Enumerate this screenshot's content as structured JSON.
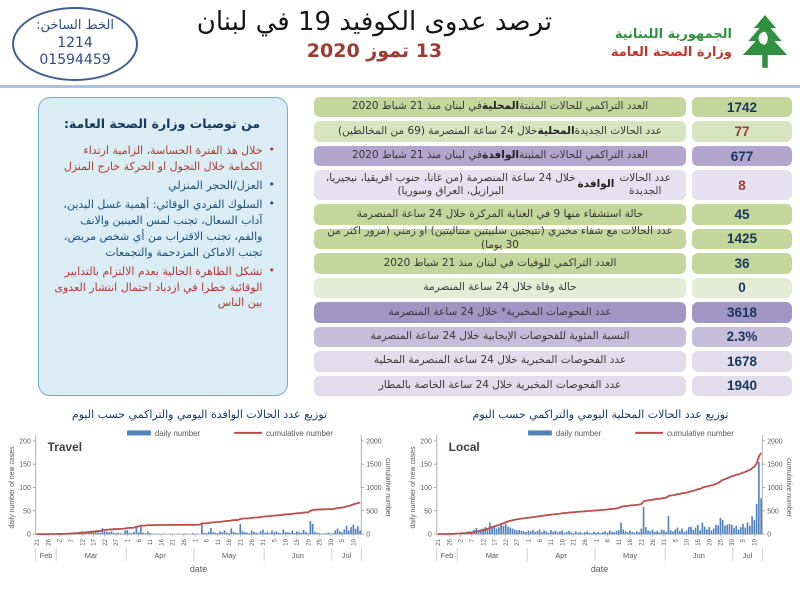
{
  "header": {
    "hotline": {
      "label": "الخط الساخن:",
      "number_short": "1214",
      "number_long": "01594459"
    },
    "title": "ترصد عدوى الكوفيد 19 في لبنان",
    "date": "13 تموز 2020",
    "ministry": {
      "line1": "الجمهورية اللبنانية",
      "line2": "وزارة الصحة العامة"
    },
    "logo_color": "#2f9140"
  },
  "recommendations": {
    "title": "من توصيات وزارة الصحة العامة:",
    "items": [
      {
        "text": "خلال هذ الفترة الحساسة، الزامية ارتداء الكمامة خلال التجول او الحركة خارج المنزل",
        "color": "red"
      },
      {
        "text": "العزل/الحجر المنزلي",
        "color": "blue"
      },
      {
        "text": "السلوك الفردي الوقائي: أهمية غسل اليدين، آداب السعال، تجنب لمس العينين والانف والفم، تجنب الاقتراب من أي شخص مريض، تجنب الاماكن المزدحمة والتجمعات",
        "color": "blue"
      },
      {
        "text": "تشكل الظاهرة الحالية بعدم الالتزام بالتدابير الوقائية خطرا في ازدياد احتمال انتشار العدوى بين الناس",
        "color": "red"
      }
    ]
  },
  "stats": {
    "rows": [
      {
        "value": "1742",
        "label": "العدد التراكمي للحالات المثبتة المحلية في لبنان منذ 21 شباط 2020",
        "bold": "المحلية",
        "bg": "#c3d69b",
        "value_color": "#17365d",
        "tall": false
      },
      {
        "value": "77",
        "label": "عدد الحالات الجديدة المحلية خلال 24 ساعة المنصرمة  (69 من المخالطين)",
        "bold": "المحلية",
        "bg": "#d8e4bf",
        "value_color": "#9e3a38",
        "tall": false
      },
      {
        "value": "677",
        "label": "العدد التراكمي للحالات المثبتة الوافدة في لبنان منذ 21 شباط 2020",
        "bold": "الوافدة",
        "bg": "#b2a6ce",
        "value_color": "#17365d",
        "tall": false
      },
      {
        "value": "8",
        "label": "عدد الحالات الجديدة الوافدة خلال 24 ساعة المنصرمة (من غانا، جنوب افريقيا، نيجيريا، البرازيل، العراق وسوريا)",
        "bold": "الوافدة",
        "bg": "#e6e1f0",
        "value_color": "#9e3a38",
        "tall": true
      },
      {
        "value": "45",
        "label": "حالة استشفاء منها 9 في العناية المركزة خلال 24 ساعة المنصرمة",
        "bold": "",
        "bg": "#c3d69b",
        "value_color": "#17365d",
        "tall": false
      },
      {
        "value": "1425",
        "label": "عدد الحالات مع شفاء مخبري (نتيجتين سلبيتين متتاليتين) او زمني (مرور اكثر من 30 يوما)",
        "bold": "",
        "bg": "#c3d69b",
        "value_color": "#17365d",
        "tall": false
      },
      {
        "value": "36",
        "label": "العدد التراكمي للوفيات في لبنان منذ 21 شباط 2020",
        "bold": "",
        "bg": "#c3d69b",
        "value_color": "#17365d",
        "tall": false
      },
      {
        "value": "0",
        "label": "حالة وفاة خلال 24 ساعة المنصرمة",
        "bold": "",
        "bg": "#e4ecd5",
        "value_color": "#17365d",
        "tall": false
      },
      {
        "value": "3618",
        "label": "عدد الفحوصات المخبرية* خلال 24 ساعة المنصرمة",
        "bold": "",
        "bg": "#a195c4",
        "value_color": "#17365d",
        "tall": false
      },
      {
        "value": "2.3%",
        "label": "النسبة المئوية للفحوصات الإيجابية خلال 24 ساعة المنصرمة",
        "bold": "",
        "bg": "#c6bdda",
        "value_color": "#17365d",
        "tall": false
      },
      {
        "value": "1678",
        "label": "عدد الفحوصات المخبرية خلال 24 ساعة المنصرمة المحلية",
        "bold": "",
        "bg": "#e2ddec",
        "value_color": "#17365d",
        "tall": false
      },
      {
        "value": "1940",
        "label": "عدد الفحوصات المخبرية خلال 24 ساعة الخاصة بالمطار",
        "bold": "",
        "bg": "#e2ddec",
        "value_color": "#17365d",
        "tall": false
      }
    ]
  },
  "chart_section": {
    "left_title": "توزيع عدد الحالات الوافدة اليومي والتراكمي حسب اليوم",
    "right_title": "توزيع عدد الحالات المحلية اليومي والتراكمي حسب اليوم"
  },
  "chart_data": [
    {
      "name": "Travel",
      "type": "bar",
      "series": [
        {
          "name": "daily number",
          "kind": "bar"
        },
        {
          "name": "cumulative number",
          "kind": "line"
        }
      ],
      "xlabel": "date",
      "ylabel_left": "daily number of new cases",
      "ylabel_right": "cumulative number",
      "ylim_left": [
        0,
        200
      ],
      "yticks_left": [
        0,
        50,
        100,
        150,
        200
      ],
      "ylim_right": [
        0,
        2000
      ],
      "yticks_right": [
        0,
        500,
        1000,
        1500,
        2000
      ],
      "x_start": "Feb 21",
      "x_tick_every_days": 5,
      "x_tick_labels": [
        "21",
        "26",
        "2",
        "7",
        "12",
        "17",
        "22",
        "27",
        "1",
        "6",
        "11",
        "16",
        "21",
        "26",
        "1",
        "6",
        "11",
        "16",
        "21",
        "26",
        "31",
        "5",
        "10",
        "15",
        "20",
        "25",
        "30",
        "5",
        "10"
      ],
      "months": [
        {
          "label": "Feb",
          "days": 9
        },
        {
          "label": "Mar",
          "days": 31
        },
        {
          "label": "Apr",
          "days": 30
        },
        {
          "label": "May",
          "days": 31
        },
        {
          "label": "Jun",
          "days": 30
        },
        {
          "label": "Jul",
          "days": 13
        }
      ],
      "daily": [
        1,
        0,
        0,
        0,
        0,
        0,
        1,
        0,
        1,
        0,
        1,
        1,
        2,
        0,
        3,
        2,
        2,
        4,
        3,
        5,
        6,
        3,
        5,
        4,
        7,
        5,
        6,
        4,
        3,
        13,
        6,
        5,
        4,
        6,
        3,
        2,
        3,
        2,
        1,
        8,
        9,
        3,
        2,
        5,
        18,
        4,
        17,
        3,
        2,
        6,
        2,
        1,
        0,
        1,
        0,
        0,
        1,
        0,
        0,
        1,
        0,
        0,
        0,
        1,
        0,
        0,
        1,
        0,
        0,
        2,
        0,
        1,
        0,
        25,
        3,
        2,
        5,
        13,
        4,
        3,
        2,
        6,
        4,
        8,
        3,
        2,
        12,
        5,
        3,
        2,
        22,
        6,
        4,
        3,
        2,
        8,
        5,
        3,
        2,
        6,
        10,
        3,
        5,
        2,
        8,
        4,
        6,
        3,
        2,
        10,
        5,
        4,
        3,
        8,
        2,
        6,
        4,
        3,
        9,
        5,
        2,
        28,
        22,
        5,
        3,
        2,
        1,
        1,
        2,
        3,
        1,
        2,
        8,
        12,
        6,
        4,
        10,
        18,
        8,
        15,
        20,
        12,
        17,
        8
      ],
      "cumulative_final": 677,
      "colors": {
        "bar": "#4f81bd",
        "line": "#be4b48"
      }
    },
    {
      "name": "Local",
      "type": "bar",
      "series": [
        {
          "name": "daily number",
          "kind": "bar"
        },
        {
          "name": "cumulative number",
          "kind": "line"
        }
      ],
      "xlabel": "date",
      "ylabel_left": "daily number of new cases",
      "ylabel_right": "cumulative number",
      "ylim_left": [
        0,
        200
      ],
      "yticks_left": [
        0,
        50,
        100,
        150,
        200
      ],
      "ylim_right": [
        0,
        2000
      ],
      "yticks_right": [
        0,
        500,
        1000,
        1500,
        2000
      ],
      "x_start": "Feb 21",
      "x_tick_every_days": 5,
      "x_tick_labels": [
        "21",
        "26",
        "2",
        "7",
        "12",
        "17",
        "22",
        "27",
        "1",
        "6",
        "11",
        "16",
        "21",
        "26",
        "1",
        "6",
        "11",
        "16",
        "21",
        "26",
        "31",
        "5",
        "10",
        "15",
        "20",
        "25",
        "30",
        "5",
        "10"
      ],
      "months": [
        {
          "label": "Feb",
          "days": 9
        },
        {
          "label": "Mar",
          "days": 31
        },
        {
          "label": "Apr",
          "days": 30
        },
        {
          "label": "May",
          "days": 31
        },
        {
          "label": "Jun",
          "days": 30
        },
        {
          "label": "Jul",
          "days": 13
        }
      ],
      "daily": [
        1,
        1,
        0,
        0,
        0,
        2,
        1,
        2,
        3,
        2,
        3,
        4,
        2,
        5,
        6,
        3,
        9,
        13,
        7,
        10,
        12,
        15,
        11,
        25,
        14,
        18,
        12,
        15,
        20,
        18,
        22,
        16,
        14,
        12,
        10,
        8,
        9,
        7,
        6,
        5,
        8,
        6,
        9,
        5,
        7,
        10,
        4,
        8,
        6,
        3,
        9,
        5,
        7,
        4,
        6,
        8,
        3,
        5,
        7,
        4,
        2,
        6,
        3,
        5,
        2,
        4,
        6,
        3,
        2,
        5,
        3,
        5,
        2,
        4,
        6,
        3,
        8,
        5,
        4,
        7,
        9,
        25,
        10,
        6,
        4,
        8,
        5,
        3,
        6,
        4,
        12,
        58,
        15,
        8,
        6,
        10,
        5,
        7,
        4,
        10,
        8,
        5,
        39,
        8,
        6,
        10,
        14,
        7,
        12,
        5,
        8,
        15,
        16,
        9,
        14,
        20,
        8,
        25,
        16,
        10,
        15,
        8,
        12,
        20,
        19,
        35,
        30,
        18,
        20,
        22,
        20,
        14,
        18,
        10,
        15,
        22,
        14,
        25,
        18,
        38,
        30,
        65,
        155,
        77
      ],
      "cumulative_final": 1742,
      "colors": {
        "bar": "#4f81bd",
        "line": "#be4b48"
      }
    }
  ]
}
